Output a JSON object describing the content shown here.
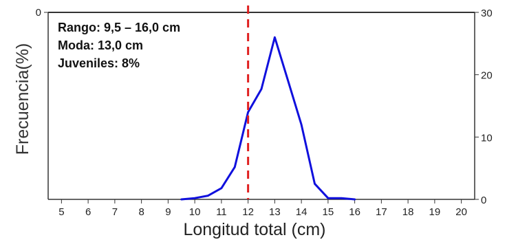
{
  "chart_data": {
    "type": "line",
    "xlabel": "Longitud total (cm)",
    "ylabel": "Frecuencia(%)",
    "xlim": [
      4.5,
      20.5
    ],
    "ylim": [
      0,
      30
    ],
    "x_ticks": [
      5,
      6,
      7,
      8,
      9,
      10,
      11,
      12,
      13,
      14,
      15,
      16,
      17,
      18,
      19,
      20
    ],
    "x_tick_labels": [
      "5",
      "6",
      "7",
      "8",
      "9",
      "10",
      "11",
      "12",
      "13",
      "14",
      "15",
      "16",
      "17",
      "18",
      "19",
      "20"
    ],
    "left_tick_label": "0",
    "right_ticks": [
      0,
      10,
      20,
      30
    ],
    "right_tick_labels": [
      "0",
      "10",
      "20",
      "30"
    ],
    "annotations": [
      "Rango: 9,5 – 16,0 cm",
      "Moda: 13,0 cm",
      "Juveniles: 8%"
    ],
    "reference_line": {
      "x": 12,
      "style": "dashed"
    },
    "series": [
      {
        "x": [
          9.5,
          10.0,
          10.5,
          11.0,
          11.5,
          12.0,
          12.5,
          13.0,
          13.5,
          14.0,
          14.5,
          15.0,
          15.5,
          16.0
        ],
        "values": [
          0,
          0.2,
          0.6,
          1.8,
          5.2,
          14.0,
          17.7,
          26.0,
          19.0,
          12.0,
          2.5,
          0.2,
          0.2,
          0
        ]
      }
    ],
    "colors": {
      "line": "#1010dd",
      "reference": "#e02020",
      "axis": "#333333"
    }
  }
}
